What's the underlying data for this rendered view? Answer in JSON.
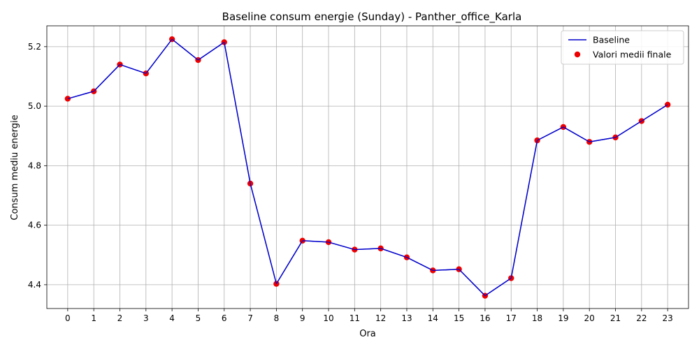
{
  "chart_data": {
    "type": "line",
    "title": "Baseline consum energie (Sunday) - Panther_office_Karla",
    "xlabel": "Ora",
    "ylabel": "Consum mediu energie",
    "x": [
      0,
      1,
      2,
      3,
      4,
      5,
      6,
      7,
      8,
      9,
      10,
      11,
      12,
      13,
      14,
      15,
      16,
      17,
      18,
      19,
      20,
      21,
      22,
      23
    ],
    "x_tick_labels": [
      "0",
      "1",
      "2",
      "3",
      "4",
      "5",
      "6",
      "7",
      "8",
      "9",
      "10",
      "11",
      "12",
      "13",
      "14",
      "15",
      "16",
      "17",
      "18",
      "19",
      "20",
      "21",
      "22",
      "23"
    ],
    "y_ticks": [
      4.4,
      4.6,
      4.8,
      5.0,
      5.2
    ],
    "y_tick_labels": [
      "4.4",
      "4.6",
      "4.8",
      "5.0",
      "5.2"
    ],
    "xlim": [
      -0.8,
      23.8
    ],
    "ylim": [
      4.32,
      5.27
    ],
    "grid": true,
    "legend_position": "top-right",
    "series": [
      {
        "name": "Baseline",
        "kind": "line",
        "color": "#0000cc",
        "values": [
          5.025,
          5.05,
          5.14,
          5.11,
          5.225,
          5.155,
          5.215,
          4.74,
          4.403,
          4.548,
          4.543,
          4.518,
          4.522,
          4.492,
          4.448,
          4.452,
          4.363,
          4.422,
          4.885,
          4.93,
          4.88,
          4.895,
          4.95,
          5.005
        ]
      },
      {
        "name": "Valori medii finale",
        "kind": "scatter",
        "color": "#ee0000",
        "values": [
          5.025,
          5.05,
          5.14,
          5.11,
          5.225,
          5.155,
          5.215,
          4.74,
          4.403,
          4.548,
          4.543,
          4.518,
          4.522,
          4.492,
          4.448,
          4.452,
          4.363,
          4.422,
          4.885,
          4.93,
          4.88,
          4.895,
          4.95,
          5.005
        ]
      }
    ]
  }
}
